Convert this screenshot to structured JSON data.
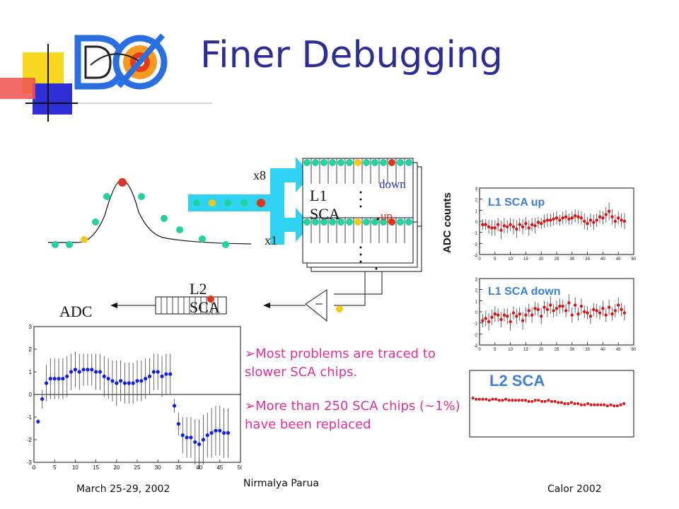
{
  "slide": {
    "title": "Finer Debugging",
    "bullets": [
      {
        "marker": "➢",
        "text": "Most problems are traced to slower SCA chips."
      },
      {
        "marker": "➢",
        "text": "More than 250 SCA chips (~1%) have been replaced"
      }
    ],
    "footer": {
      "date": "March 25-29, 2002",
      "author": "Nirmalya Parua",
      "conference": "Calor 2002"
    },
    "colors": {
      "title": "#2d2d96",
      "bullet_text": "#e0309c",
      "pipeline_arrow": "#2fd2f0",
      "green_dot": "#20d2a0",
      "red_dot": "#e03420",
      "yellow_dot": "#f5c814",
      "plot_red": "#e01010",
      "plot_blue": "#1020e0"
    }
  },
  "logo": {
    "icon": "dzero-logo-icon"
  },
  "diagram": {
    "labels": {
      "x8": "x8",
      "x1": "x1",
      "l1_sca": "L1\nSCA",
      "down": "down",
      "up": "up",
      "l2_sca": "L2\nSCA",
      "adc": "ADC"
    }
  },
  "plots": {
    "adc_axis_label": "ADC counts",
    "l1_up": "L1 SCA up",
    "l1_down": "L1 SCA down",
    "l2": "L2 SCA"
  },
  "chart_data": [
    {
      "type": "scatter",
      "name_in_image": "",
      "ylim": [
        -3,
        3
      ],
      "xlim": [
        0,
        50
      ],
      "xticks": [
        0,
        5,
        10,
        15,
        20,
        25,
        30,
        35,
        40,
        45,
        50
      ],
      "yticks": [
        -3,
        -2,
        -1,
        0,
        1,
        2,
        3
      ],
      "x": [
        1,
        2,
        3,
        4,
        5,
        6,
        7,
        8,
        9,
        10,
        11,
        12,
        13,
        14,
        15,
        16,
        17,
        18,
        19,
        20,
        21,
        22,
        23,
        24,
        25,
        26,
        27,
        28,
        29,
        30,
        31,
        32,
        33,
        34,
        35,
        36,
        37,
        38,
        39,
        40,
        41,
        42,
        43,
        44,
        45,
        46,
        47
      ],
      "y": [
        -1.2,
        -0.2,
        0.5,
        0.7,
        0.7,
        0.7,
        0.7,
        0.8,
        1.0,
        1.1,
        1.0,
        1.1,
        1.1,
        1.1,
        1.0,
        1.0,
        0.8,
        0.7,
        0.6,
        0.5,
        0.6,
        0.5,
        0.5,
        0.5,
        0.6,
        0.6,
        0.7,
        0.8,
        1.0,
        1.0,
        0.8,
        0.9,
        0.9,
        -0.5,
        -1.3,
        -1.8,
        -1.9,
        -1.9,
        -2.1,
        -2.2,
        -2.0,
        -1.8,
        -1.7,
        -1.6,
        -1.6,
        -1.7,
        -1.7
      ],
      "err": [
        0.1,
        0.4,
        0.8,
        0.9,
        0.9,
        0.9,
        0.9,
        0.9,
        0.8,
        0.8,
        0.8,
        0.7,
        0.7,
        0.7,
        0.8,
        0.8,
        0.9,
        0.9,
        0.9,
        1.0,
        0.9,
        0.9,
        0.9,
        0.9,
        0.9,
        0.9,
        0.9,
        0.8,
        0.8,
        0.8,
        0.9,
        0.9,
        0.9,
        0.3,
        0.5,
        0.8,
        0.9,
        0.9,
        1.0,
        1.1,
        1.1,
        1.0,
        1.1,
        1.1,
        1.1,
        1.1,
        1.1
      ],
      "marker_color": "#1020e0"
    },
    {
      "type": "scatter",
      "name_in_image": "L1 SCA up",
      "ylim": [
        -3,
        3
      ],
      "xlim": [
        0,
        50
      ],
      "xticks": [
        0,
        5,
        10,
        15,
        20,
        25,
        30,
        35,
        40,
        45,
        50
      ],
      "yticks": [
        -3,
        -2,
        -1,
        0,
        1,
        2,
        3
      ],
      "x": [
        1,
        2,
        3,
        4,
        5,
        6,
        7,
        8,
        9,
        10,
        11,
        12,
        13,
        14,
        15,
        16,
        17,
        18,
        19,
        20,
        21,
        22,
        23,
        24,
        25,
        26,
        27,
        28,
        29,
        30,
        31,
        32,
        33,
        34,
        35,
        36,
        37,
        38,
        39,
        40,
        41,
        42,
        43,
        44,
        45,
        46,
        47
      ],
      "y": [
        -0.3,
        -0.3,
        -0.5,
        -0.6,
        -0.6,
        -0.3,
        -0.8,
        -0.4,
        -0.5,
        -0.3,
        -0.5,
        -0.7,
        -0.3,
        -0.5,
        -0.2,
        -0.6,
        -0.3,
        -0.4,
        -0.1,
        -0.2,
        0.0,
        0.1,
        0.1,
        0.2,
        0.3,
        0.1,
        0.3,
        0.4,
        0.2,
        0.3,
        0.5,
        0.4,
        0.3,
        0.0,
        -0.2,
        0.1,
        -0.1,
        0.1,
        0.4,
        0.3,
        0.6,
        0.9,
        0.4,
        0.0,
        0.3,
        0.1,
        0.0
      ],
      "err": [
        0.5,
        0.5,
        0.6,
        0.7,
        0.7,
        0.6,
        0.8,
        0.7,
        0.6,
        0.6,
        0.7,
        0.8,
        0.6,
        0.7,
        0.6,
        0.7,
        0.6,
        0.7,
        0.5,
        0.5,
        0.6,
        0.6,
        0.6,
        0.6,
        0.6,
        0.5,
        0.6,
        0.6,
        0.5,
        0.6,
        0.6,
        0.6,
        0.6,
        0.7,
        0.6,
        0.6,
        0.7,
        0.6,
        0.6,
        0.6,
        0.7,
        0.8,
        0.7,
        0.6,
        0.6,
        0.6,
        0.7
      ],
      "marker_color": "#e01010"
    },
    {
      "type": "scatter",
      "name_in_image": "L1 SCA down",
      "ylim": [
        -3,
        3
      ],
      "xlim": [
        0,
        50
      ],
      "xticks": [
        0,
        5,
        10,
        15,
        20,
        25,
        30,
        35,
        40,
        45,
        50
      ],
      "yticks": [
        -3,
        -2,
        -1,
        0,
        1,
        2,
        3
      ],
      "x": [
        1,
        2,
        3,
        4,
        5,
        6,
        7,
        8,
        9,
        10,
        11,
        12,
        13,
        14,
        15,
        16,
        17,
        18,
        19,
        20,
        21,
        22,
        23,
        24,
        25,
        26,
        27,
        28,
        29,
        30,
        31,
        32,
        33,
        34,
        35,
        36,
        37,
        38,
        39,
        40,
        41,
        42,
        43,
        44,
        45,
        46,
        47
      ],
      "y": [
        -0.8,
        -0.6,
        -0.9,
        -0.5,
        -0.2,
        -0.3,
        -0.7,
        -0.3,
        -0.4,
        -0.9,
        -0.1,
        -0.4,
        -0.2,
        -0.8,
        -0.3,
        0.1,
        -0.3,
        0.3,
        0.2,
        -0.4,
        0.4,
        0.2,
        0.6,
        0.1,
        0.3,
        0.5,
        0.5,
        0.1,
        0.8,
        -0.3,
        0.6,
        -0.2,
        0.5,
        0.0,
        -0.1,
        -0.4,
        0.2,
        0.1,
        -0.1,
        0.3,
        -0.3,
        0.4,
        -0.2,
        0.1,
        0.6,
        0.2,
        -0.1
      ],
      "err": [
        0.6,
        0.7,
        0.8,
        0.7,
        0.7,
        0.6,
        0.7,
        0.6,
        0.7,
        0.8,
        0.6,
        0.7,
        0.6,
        0.8,
        0.7,
        0.6,
        0.7,
        0.6,
        0.6,
        0.7,
        0.6,
        0.7,
        0.8,
        0.6,
        0.7,
        0.7,
        0.6,
        0.6,
        0.8,
        0.7,
        0.7,
        0.6,
        0.7,
        0.6,
        0.6,
        0.7,
        0.6,
        0.6,
        0.6,
        0.7,
        0.6,
        0.7,
        0.6,
        0.6,
        0.7,
        0.6,
        0.7
      ],
      "marker_color": "#e01010"
    },
    {
      "type": "scatter",
      "name_in_image": "L2 SCA",
      "ylim": [
        -3,
        3
      ],
      "xlim": [
        0,
        50
      ],
      "x": [
        1,
        2,
        3,
        4,
        5,
        6,
        7,
        8,
        9,
        10,
        11,
        12,
        13,
        14,
        15,
        16,
        17,
        18,
        19,
        20,
        21,
        22,
        23,
        24,
        25,
        26,
        27,
        28,
        29,
        30,
        31,
        32,
        33,
        34,
        35,
        36,
        37,
        38,
        39,
        40,
        41,
        42,
        43,
        44,
        45,
        46,
        47
      ],
      "y": [
        0.5,
        0.4,
        0.4,
        0.4,
        0.4,
        0.3,
        0.4,
        0.4,
        0.3,
        0.3,
        0.4,
        0.3,
        0.3,
        0.3,
        0.3,
        0.3,
        0.3,
        0.2,
        0.2,
        0.3,
        0.3,
        0.2,
        0.2,
        0.3,
        0.2,
        0.2,
        0.1,
        0.1,
        0.0,
        0.0,
        0.1,
        0.0,
        0.0,
        -0.1,
        -0.1,
        0.0,
        -0.1,
        -0.1,
        -0.1,
        -0.1,
        -0.1,
        -0.2,
        -0.1,
        -0.2,
        -0.2,
        -0.1,
        0.0
      ],
      "err": [
        0.1,
        0.1,
        0.1,
        0.1,
        0.1,
        0.1,
        0.1,
        0.1,
        0.1,
        0.1,
        0.1,
        0.1,
        0.1,
        0.1,
        0.1,
        0.1,
        0.1,
        0.1,
        0.1,
        0.1,
        0.1,
        0.1,
        0.1,
        0.1,
        0.1,
        0.1,
        0.1,
        0.1,
        0.1,
        0.1,
        0.1,
        0.1,
        0.1,
        0.1,
        0.1,
        0.1,
        0.1,
        0.1,
        0.1,
        0.1,
        0.1,
        0.1,
        0.1,
        0.1,
        0.1,
        0.1,
        0.1
      ],
      "marker_color": "#e01010"
    }
  ]
}
